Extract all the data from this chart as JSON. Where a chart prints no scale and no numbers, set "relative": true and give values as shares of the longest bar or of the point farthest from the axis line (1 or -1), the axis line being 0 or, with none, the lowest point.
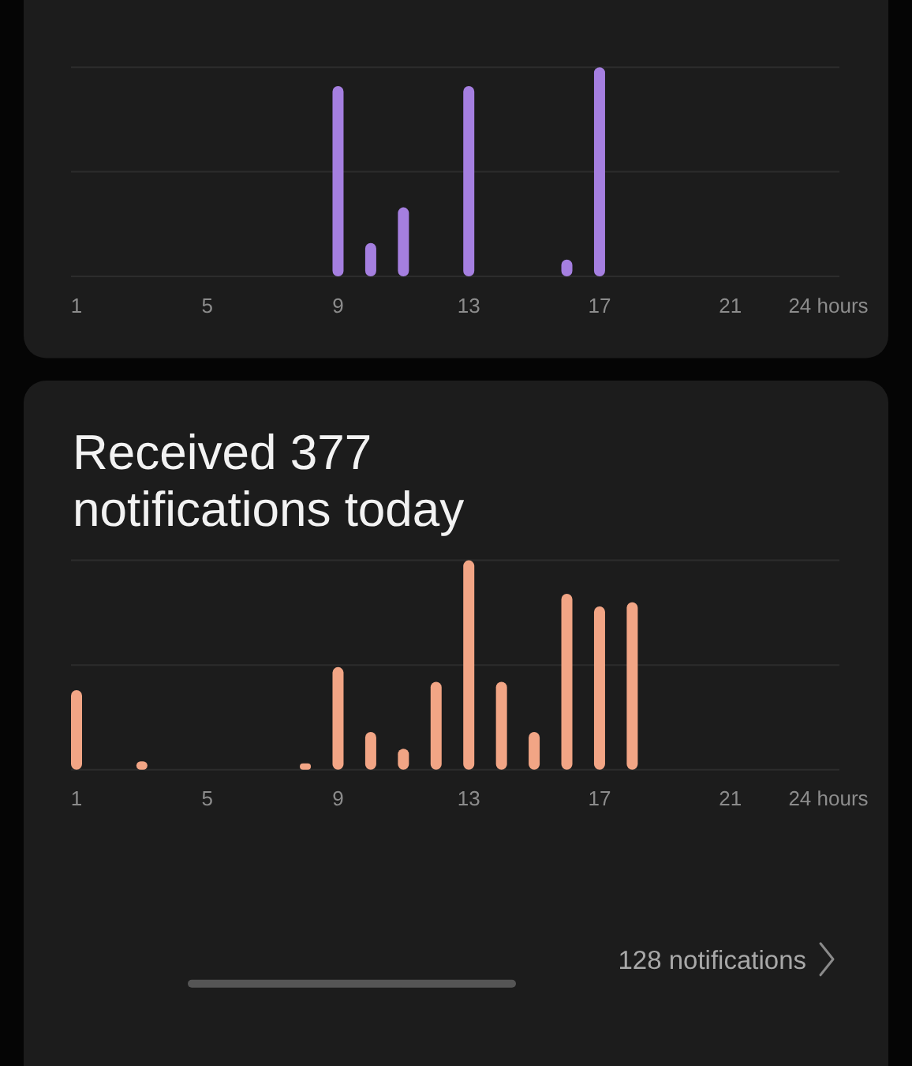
{
  "chart_data": [
    {
      "type": "bar",
      "relative": true,
      "color": "#a57fe0",
      "categories": [
        "1",
        null,
        null,
        null,
        "5",
        null,
        null,
        null,
        "9",
        null,
        null,
        null,
        "13",
        null,
        null,
        null,
        "17",
        null,
        null,
        null,
        "21",
        null,
        null,
        "24 hours"
      ],
      "values": [
        0,
        0,
        0,
        0,
        0,
        0,
        0,
        0,
        0.91,
        0.16,
        0.33,
        0,
        0.91,
        0,
        0,
        0.08,
        1,
        0,
        0,
        0,
        0,
        0,
        0,
        0
      ],
      "ref_lines": [
        {
          "axis": "y",
          "value": 0.5,
          "color": "#2c2c2c"
        },
        {
          "axis": "y",
          "value": 1,
          "color": "#2c2c2c"
        }
      ]
    },
    {
      "type": "bar",
      "relative": true,
      "color": "#f2a585",
      "title": "Received 377 notifications today",
      "categories": [
        "1",
        null,
        null,
        null,
        "5",
        null,
        null,
        null,
        "9",
        null,
        null,
        null,
        "13",
        null,
        null,
        null,
        "17",
        null,
        null,
        null,
        "21",
        null,
        null,
        "24 hours"
      ],
      "values": [
        0.38,
        0,
        0.04,
        0,
        0,
        0,
        0,
        0.03,
        0.49,
        0.18,
        0.1,
        0.42,
        1,
        0.42,
        0.18,
        0.84,
        0.78,
        0.8,
        0,
        0,
        0,
        0,
        0,
        0
      ],
      "ref_lines": [
        {
          "axis": "y",
          "value": 0.5,
          "color": "#2c2c2c"
        },
        {
          "axis": "y",
          "value": 1,
          "color": "#2c2c2c"
        }
      ],
      "annotations": [
        "128 notifications"
      ]
    }
  ]
}
